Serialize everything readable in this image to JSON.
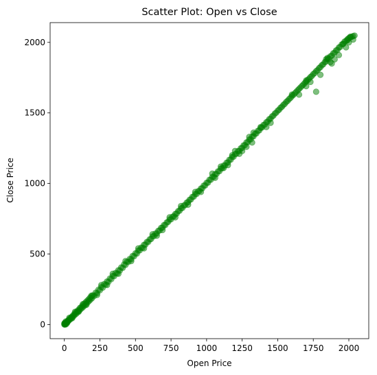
{
  "chart_data": {
    "type": "scatter",
    "title": "Scatter Plot: Open vs Close",
    "xlabel": "Open Price",
    "ylabel": "Close Price",
    "xlim": [
      -100,
      2140
    ],
    "ylim": [
      -100,
      2140
    ],
    "x_ticks": [
      0,
      250,
      500,
      750,
      1000,
      1250,
      1500,
      1750,
      2000
    ],
    "y_ticks": [
      0,
      500,
      1000,
      1500,
      2000
    ],
    "grid": false,
    "marker_color": "#008000",
    "marker_alpha": 0.5,
    "series": [
      {
        "points": [
          [
            0,
            0
          ],
          [
            2,
            3
          ],
          [
            4,
            5
          ],
          [
            6,
            5
          ],
          [
            8,
            10
          ],
          [
            10,
            8
          ],
          [
            12,
            14
          ],
          [
            15,
            13
          ],
          [
            18,
            20
          ],
          [
            20,
            17
          ],
          [
            24,
            26
          ],
          [
            28,
            25
          ],
          [
            30,
            33
          ],
          [
            35,
            32
          ],
          [
            40,
            44
          ],
          [
            45,
            40
          ],
          [
            50,
            53
          ],
          [
            55,
            50
          ],
          [
            60,
            64
          ],
          [
            65,
            60
          ],
          [
            70,
            75
          ],
          [
            75,
            70
          ],
          [
            80,
            86
          ],
          [
            85,
            78
          ],
          [
            90,
            95
          ],
          [
            95,
            90
          ],
          [
            100,
            105
          ],
          [
            105,
            98
          ],
          [
            110,
            118
          ],
          [
            115,
            110
          ],
          [
            120,
            125
          ],
          [
            125,
            118
          ],
          [
            130,
            137
          ],
          [
            135,
            128
          ],
          [
            140,
            148
          ],
          [
            145,
            138
          ],
          [
            150,
            158
          ],
          [
            155,
            148
          ],
          [
            160,
            168
          ],
          [
            165,
            158
          ],
          [
            170,
            178
          ],
          [
            175,
            168
          ],
          [
            180,
            190
          ],
          [
            185,
            178
          ],
          [
            190,
            198
          ],
          [
            195,
            188
          ],
          [
            200,
            207
          ],
          [
            210,
            203
          ],
          [
            220,
            226
          ],
          [
            230,
            222
          ],
          [
            240,
            247
          ],
          [
            250,
            243
          ],
          [
            260,
            266
          ],
          [
            270,
            262
          ],
          [
            280,
            287
          ],
          [
            290,
            283
          ],
          [
            300,
            305
          ],
          [
            310,
            303
          ],
          [
            320,
            326
          ],
          [
            330,
            322
          ],
          [
            340,
            345
          ],
          [
            350,
            343
          ],
          [
            360,
            366
          ],
          [
            370,
            362
          ],
          [
            380,
            385
          ],
          [
            390,
            383
          ],
          [
            400,
            405
          ],
          [
            410,
            402
          ],
          [
            420,
            426
          ],
          [
            430,
            423
          ],
          [
            440,
            445
          ],
          [
            450,
            444
          ],
          [
            460,
            465
          ],
          [
            470,
            463
          ],
          [
            480,
            486
          ],
          [
            490,
            484
          ],
          [
            500,
            505
          ],
          [
            510,
            503
          ],
          [
            520,
            525
          ],
          [
            530,
            526
          ],
          [
            540,
            545
          ],
          [
            550,
            544
          ],
          [
            560,
            565
          ],
          [
            570,
            567
          ],
          [
            580,
            585
          ],
          [
            590,
            586
          ],
          [
            600,
            604
          ],
          [
            610,
            607
          ],
          [
            620,
            625
          ],
          [
            630,
            627
          ],
          [
            640,
            645
          ],
          [
            650,
            646
          ],
          [
            660,
            664
          ],
          [
            670,
            667
          ],
          [
            680,
            685
          ],
          [
            690,
            687
          ],
          [
            700,
            705
          ],
          [
            710,
            706
          ],
          [
            720,
            724
          ],
          [
            730,
            728
          ],
          [
            740,
            745
          ],
          [
            750,
            746
          ],
          [
            760,
            764
          ],
          [
            770,
            768
          ],
          [
            780,
            784
          ],
          [
            790,
            787
          ],
          [
            800,
            804
          ],
          [
            810,
            807
          ],
          [
            820,
            824
          ],
          [
            830,
            827
          ],
          [
            840,
            844
          ],
          [
            850,
            847
          ],
          [
            860,
            864
          ],
          [
            870,
            868
          ],
          [
            880,
            884
          ],
          [
            890,
            887
          ],
          [
            900,
            905
          ],
          [
            910,
            907
          ],
          [
            920,
            925
          ],
          [
            930,
            926
          ],
          [
            940,
            945
          ],
          [
            950,
            947
          ],
          [
            960,
            964
          ],
          [
            970,
            966
          ],
          [
            980,
            985
          ],
          [
            990,
            986
          ],
          [
            1000,
            1005
          ],
          [
            1010,
            1006
          ],
          [
            1020,
            1026
          ],
          [
            1030,
            1027
          ],
          [
            1040,
            1046
          ],
          [
            1050,
            1047
          ],
          [
            1060,
            1066
          ],
          [
            1070,
            1068
          ],
          [
            1080,
            1086
          ],
          [
            1090,
            1087
          ],
          [
            1100,
            1106
          ],
          [
            1110,
            1108
          ],
          [
            1120,
            1127
          ],
          [
            1130,
            1128
          ],
          [
            1140,
            1147
          ],
          [
            1150,
            1149
          ],
          [
            1160,
            1168
          ],
          [
            1170,
            1169
          ],
          [
            1180,
            1188
          ],
          [
            1190,
            1190
          ],
          [
            1200,
            1208
          ],
          [
            1210,
            1211
          ],
          [
            1220,
            1229
          ],
          [
            1230,
            1231
          ],
          [
            1240,
            1249
          ],
          [
            1250,
            1252
          ],
          [
            1260,
            1270
          ],
          [
            1270,
            1272
          ],
          [
            1280,
            1291
          ],
          [
            1290,
            1293
          ],
          [
            1300,
            1311
          ],
          [
            1310,
            1313
          ],
          [
            1320,
            1332
          ],
          [
            1330,
            1334
          ],
          [
            1340,
            1352
          ],
          [
            1350,
            1355
          ],
          [
            1360,
            1373
          ],
          [
            1370,
            1376
          ],
          [
            1380,
            1393
          ],
          [
            1390,
            1397
          ],
          [
            1400,
            1414
          ],
          [
            1410,
            1418
          ],
          [
            1420,
            1434
          ],
          [
            1430,
            1439
          ],
          [
            1440,
            1455
          ],
          [
            1450,
            1460
          ],
          [
            1460,
            1475
          ],
          [
            1470,
            1481
          ],
          [
            1480,
            1496
          ],
          [
            1490,
            1502
          ],
          [
            1500,
            1516
          ],
          [
            1510,
            1523
          ],
          [
            1520,
            1537
          ],
          [
            1530,
            1544
          ],
          [
            1540,
            1557
          ],
          [
            1550,
            1565
          ],
          [
            1560,
            1578
          ],
          [
            1570,
            1586
          ],
          [
            1580,
            1598
          ],
          [
            1590,
            1607
          ],
          [
            1600,
            1619
          ],
          [
            1610,
            1628
          ],
          [
            1620,
            1639
          ],
          [
            1630,
            1649
          ],
          [
            1640,
            1660
          ],
          [
            1650,
            1670
          ],
          [
            1660,
            1680
          ],
          [
            1670,
            1691
          ],
          [
            1680,
            1701
          ],
          [
            1690,
            1712
          ],
          [
            1700,
            1721
          ],
          [
            1710,
            1733
          ],
          [
            1720,
            1742
          ],
          [
            1730,
            1754
          ],
          [
            1740,
            1762
          ],
          [
            1750,
            1775
          ],
          [
            1760,
            1783
          ],
          [
            1770,
            1796
          ],
          [
            1780,
            1803
          ],
          [
            1790,
            1817
          ],
          [
            1800,
            1824
          ],
          [
            1810,
            1838
          ],
          [
            1820,
            1844
          ],
          [
            1830,
            1859
          ],
          [
            1840,
            1865
          ],
          [
            1850,
            1880
          ],
          [
            1860,
            1886
          ],
          [
            1870,
            1901
          ],
          [
            1880,
            1906
          ],
          [
            1890,
            1922
          ],
          [
            1900,
            1927
          ],
          [
            1910,
            1943
          ],
          [
            1920,
            1947
          ],
          [
            1930,
            1964
          ],
          [
            1940,
            1968
          ],
          [
            1950,
            1985
          ],
          [
            1960,
            1989
          ],
          [
            1970,
            2006
          ],
          [
            1980,
            2010
          ],
          [
            1990,
            2022
          ],
          [
            2000,
            2030
          ],
          [
            2010,
            2035
          ],
          [
            2020,
            2040
          ],
          [
            2030,
            2044
          ],
          [
            2040,
            2048
          ],
          [
            1330,
            1360
          ],
          [
            1300,
            1330
          ],
          [
            1250,
            1230
          ],
          [
            1200,
            1230
          ],
          [
            1150,
            1130
          ],
          [
            1100,
            1120
          ],
          [
            1280,
            1260
          ],
          [
            1320,
            1290
          ],
          [
            1450,
            1430
          ],
          [
            1600,
            1630
          ],
          [
            1650,
            1630
          ],
          [
            1770,
            1650
          ],
          [
            1730,
            1720
          ],
          [
            1800,
            1770
          ],
          [
            1850,
            1890
          ],
          [
            1870,
            1860
          ],
          [
            1900,
            1880
          ],
          [
            1930,
            1910
          ],
          [
            1880,
            1850
          ],
          [
            1840,
            1880
          ],
          [
            1700,
            1730
          ],
          [
            1700,
            1690
          ],
          [
            1420,
            1400
          ],
          [
            1380,
            1400
          ],
          [
            1230,
            1210
          ],
          [
            1180,
            1200
          ],
          [
            1120,
            1110
          ],
          [
            1060,
            1040
          ],
          [
            1040,
            1070
          ],
          [
            960,
            940
          ],
          [
            920,
            940
          ],
          [
            870,
            850
          ],
          [
            820,
            840
          ],
          [
            780,
            760
          ],
          [
            740,
            760
          ],
          [
            690,
            670
          ],
          [
            650,
            630
          ],
          [
            620,
            640
          ],
          [
            560,
            540
          ],
          [
            520,
            540
          ],
          [
            470,
            450
          ],
          [
            430,
            450
          ],
          [
            380,
            360
          ],
          [
            340,
            360
          ],
          [
            300,
            280
          ],
          [
            260,
            280
          ],
          [
            230,
            210
          ],
          [
            190,
            205
          ],
          [
            155,
            140
          ],
          [
            130,
            145
          ],
          [
            100,
            90
          ],
          [
            75,
            90
          ],
          [
            55,
            45
          ],
          [
            35,
            48
          ],
          [
            20,
            12
          ],
          [
            10,
            22
          ],
          [
            5,
            0
          ],
          [
            0,
            8
          ],
          [
            3,
            12
          ],
          [
            12,
            2
          ],
          [
            2010,
            2040
          ],
          [
            1990,
            2015
          ],
          [
            1960,
            1990
          ],
          [
            1980,
            1965
          ],
          [
            2030,
            2020
          ],
          [
            2000,
            2000
          ]
        ]
      }
    ]
  }
}
